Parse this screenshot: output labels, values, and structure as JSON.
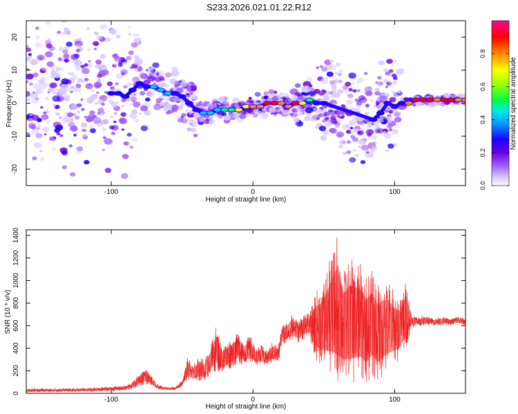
{
  "title": "S233.2026.021.01.22.R12",
  "colors": {
    "snr_line": "#ee2222",
    "colormap": [
      "#ffffff",
      "#d8c8ff",
      "#a060ff",
      "#6a00e0",
      "#2000ff",
      "#00c8ff",
      "#00ff60",
      "#ffff00",
      "#ff8800",
      "#ff0000",
      "#ff00aa"
    ]
  },
  "chart_data": [
    {
      "type": "heatmap",
      "title": "S233.2026.021.01.22.R12",
      "xlabel": "Height of straight line (km)",
      "ylabel": "Frequency (Hz)",
      "xlim": [
        -160,
        150
      ],
      "ylim": [
        -25,
        25
      ],
      "xticks": [
        -100,
        0,
        100
      ],
      "xtick_labels": [
        "-100",
        "0",
        "100"
      ],
      "yticks": [
        -20,
        -10,
        0,
        10,
        20
      ],
      "ytick_labels": [
        "-20",
        "-10",
        "0",
        "10",
        "20"
      ],
      "colorbar": {
        "label": "Normalized spectral amplitude",
        "range": [
          0.0,
          1.0
        ],
        "ticks": [
          0.0,
          0.2,
          0.4,
          0.6,
          0.8
        ],
        "tick_labels": [
          "0.0",
          "0.2",
          "0.4",
          "0.6",
          "0.8"
        ]
      },
      "ridge": {
        "x": [
          -100,
          -95,
          -90,
          -85,
          -80,
          -75,
          -70,
          -65,
          -60,
          -55,
          -50,
          -45,
          -40,
          -35,
          -30,
          -25,
          -20,
          -15,
          -10,
          -5,
          0,
          5,
          10,
          15,
          20,
          25,
          30,
          35,
          40,
          45,
          50,
          85,
          90,
          95,
          100,
          105,
          110,
          115,
          120,
          125,
          130,
          135,
          140,
          145,
          150
        ],
        "freq": [
          3,
          3,
          2,
          4,
          6,
          5,
          5,
          4,
          3,
          3,
          2,
          0,
          -2,
          -3,
          -3,
          -2,
          -2,
          -2,
          -2,
          -1,
          -1,
          -1,
          0,
          0,
          0,
          -1,
          0,
          0,
          1,
          0,
          0,
          -5,
          -3,
          0,
          -1,
          0,
          0,
          1,
          1,
          1,
          1,
          1,
          1,
          1,
          1
        ],
        "amplitude": [
          0.35,
          0.3,
          0.3,
          0.25,
          0.35,
          0.4,
          0.45,
          0.5,
          0.45,
          0.4,
          0.35,
          0.35,
          0.4,
          0.45,
          0.5,
          0.55,
          0.65,
          0.7,
          0.75,
          0.8,
          0.9,
          0.9,
          0.95,
          0.95,
          0.9,
          0.85,
          0.95,
          0.8,
          0.6,
          0.4,
          0.3,
          0.35,
          0.3,
          0.3,
          0.3,
          0.4,
          0.9,
          0.95,
          0.95,
          0.95,
          0.9,
          0.95,
          0.95,
          0.9,
          0.9
        ]
      }
    },
    {
      "type": "line",
      "xlabel": "Height of straight line (km)",
      "ylabel": "SNR (10 * v/v)",
      "xlim": [
        -160,
        150
      ],
      "ylim": [
        0,
        1450
      ],
      "xticks": [
        -100,
        0,
        100
      ],
      "xtick_labels": [
        "-100",
        "0",
        "100"
      ],
      "yticks": [
        0,
        200,
        400,
        600,
        800,
        1000,
        1200,
        1400
      ],
      "ytick_labels": [
        "0",
        "200",
        "400",
        "600",
        "800",
        "1000",
        "1200",
        "1400"
      ],
      "series": [
        {
          "name": "SNR",
          "x": [
            -160,
            -150,
            -140,
            -130,
            -120,
            -110,
            -100,
            -90,
            -85,
            -80,
            -76,
            -72,
            -68,
            -64,
            -60,
            -55,
            -50,
            -46,
            -42,
            -38,
            -34,
            -30,
            -26,
            -22,
            -18,
            -14,
            -10,
            -6,
            -2,
            2,
            6,
            10,
            14,
            18,
            20,
            24,
            28,
            32,
            36,
            40,
            44,
            48,
            52,
            56,
            60,
            64,
            68,
            72,
            76,
            80,
            84,
            88,
            92,
            96,
            100,
            104,
            108,
            112,
            116,
            120,
            124,
            128,
            132,
            136,
            140,
            144,
            150
          ],
          "upper": [
            40,
            45,
            40,
            45,
            45,
            50,
            60,
            70,
            100,
            180,
            230,
            160,
            80,
            60,
            55,
            55,
            120,
            320,
            250,
            330,
            300,
            420,
            600,
            420,
            460,
            500,
            540,
            460,
            520,
            400,
            430,
            380,
            460,
            420,
            600,
            640,
            720,
            640,
            720,
            700,
            900,
            950,
            1100,
            1250,
            1450,
            1100,
            1200,
            1180,
            1150,
            1050,
            1100,
            980,
            1020,
            1000,
            900,
            850,
            1000,
            700,
            680,
            680,
            690,
            660,
            680,
            670,
            660,
            690,
            660
          ],
          "lower": [
            10,
            12,
            12,
            15,
            14,
            15,
            20,
            22,
            40,
            60,
            80,
            70,
            40,
            30,
            30,
            30,
            60,
            120,
            100,
            110,
            100,
            160,
            200,
            180,
            200,
            240,
            260,
            250,
            260,
            250,
            250,
            240,
            270,
            260,
            420,
            440,
            460,
            450,
            480,
            500,
            300,
            250,
            200,
            150,
            60,
            100,
            80,
            100,
            120,
            80,
            150,
            100,
            150,
            200,
            250,
            300,
            400,
            580,
            600,
            600,
            610,
            600,
            600,
            610,
            600,
            610,
            600
          ]
        }
      ]
    }
  ]
}
